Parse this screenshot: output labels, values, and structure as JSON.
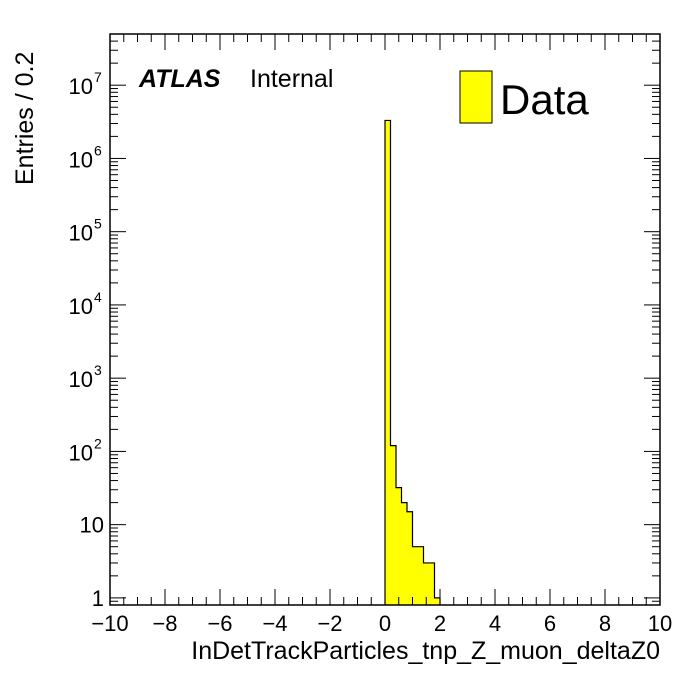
{
  "chart_data": {
    "type": "bar",
    "xlabel": "InDetTrackParticles_tnp_Z_muon_deltaZ0",
    "ylabel": "Entries / 0.2",
    "xlim": [
      -10,
      10
    ],
    "ylim": [
      0.8,
      50000000
    ],
    "yscale": "log",
    "x_tick_values": [
      -10,
      -8,
      -6,
      -4,
      -2,
      0,
      2,
      4,
      6,
      8,
      10
    ],
    "x_tick_labels": [
      "−10",
      "−8",
      "−6",
      "−4",
      "−2",
      "0",
      "2",
      "4",
      "6",
      "8",
      "10"
    ],
    "y_ticks": [
      {
        "value": 1,
        "base": "1",
        "exp": ""
      },
      {
        "value": 10,
        "base": "10",
        "exp": ""
      },
      {
        "value": 100,
        "base": "10",
        "exp": "2"
      },
      {
        "value": 1000,
        "base": "10",
        "exp": "3"
      },
      {
        "value": 10000,
        "base": "10",
        "exp": "4"
      },
      {
        "value": 100000,
        "base": "10",
        "exp": "5"
      },
      {
        "value": 1000000,
        "base": "10",
        "exp": "6"
      },
      {
        "value": 10000000,
        "base": "10",
        "exp": "7"
      }
    ],
    "bin_width": 0.2,
    "bins": [
      {
        "low": 0.0,
        "value": 3300000
      },
      {
        "low": 0.2,
        "value": 120
      },
      {
        "low": 0.4,
        "value": 32
      },
      {
        "low": 0.6,
        "value": 20
      },
      {
        "low": 0.8,
        "value": 15
      },
      {
        "low": 1.0,
        "value": 5
      },
      {
        "low": 1.2,
        "value": 5
      },
      {
        "low": 1.4,
        "value": 3
      },
      {
        "low": 1.6,
        "value": 3
      },
      {
        "low": 1.8,
        "value": 1
      }
    ],
    "fill_color": "#ffff00",
    "line_color": "#000000",
    "legend": {
      "position": "top-right",
      "entries": [
        {
          "label": "Data",
          "color": "#ffff00"
        }
      ]
    },
    "label": {
      "experiment": "ATLAS",
      "status": "Internal",
      "position": "top-left"
    },
    "grid": false
  }
}
